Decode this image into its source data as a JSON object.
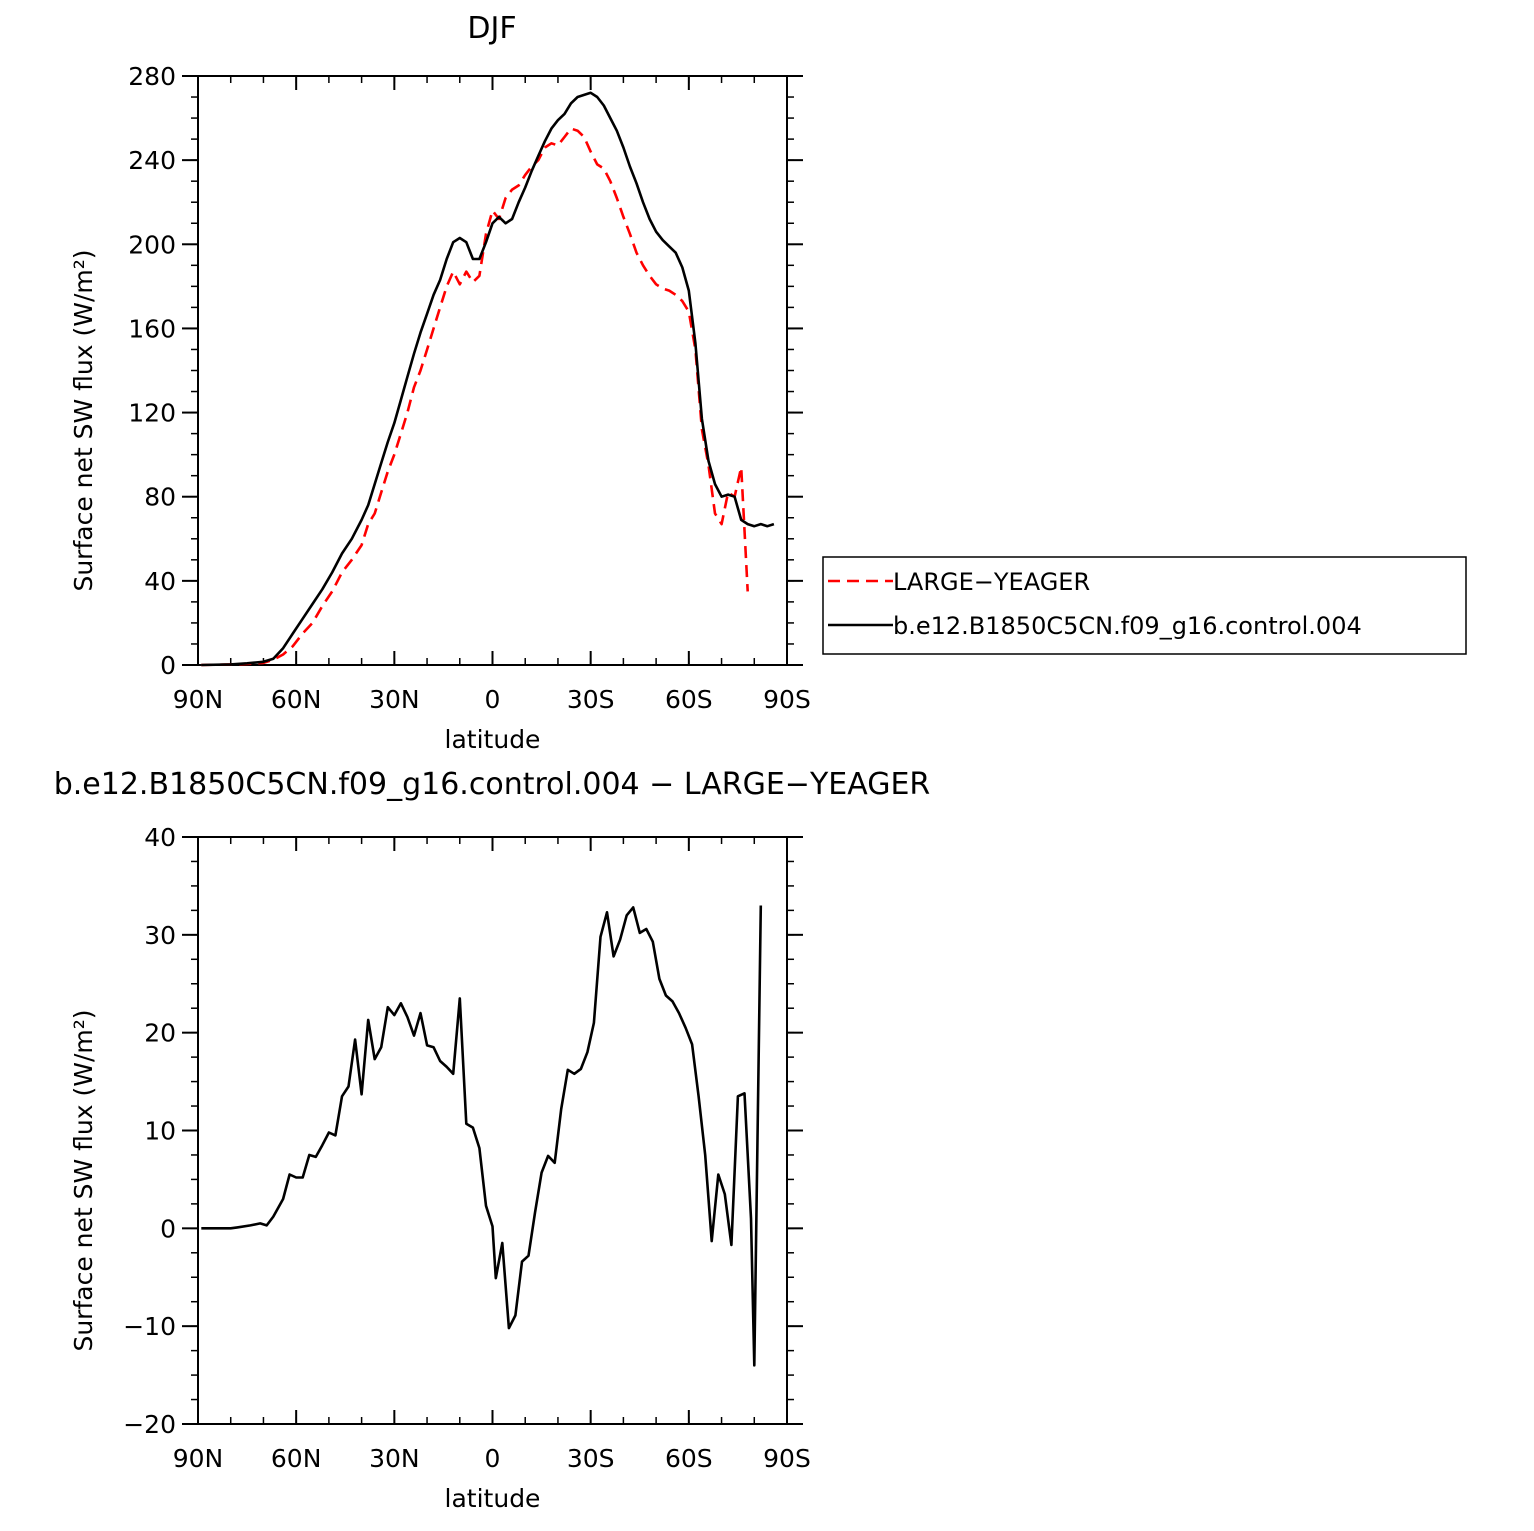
{
  "chart_data": [
    {
      "type": "line",
      "title": "DJF",
      "xlabel": "latitude",
      "ylabel": "Surface net SW flux (W/m²)",
      "xlim": [
        90,
        -90
      ],
      "ylim": [
        0,
        280
      ],
      "x_ticks": [
        90,
        60,
        30,
        0,
        -30,
        -60,
        -90
      ],
      "x_tick_labels": [
        "90N",
        "60N",
        "30N",
        "0",
        "30S",
        "60S",
        "90S"
      ],
      "y_ticks": [
        0,
        40,
        80,
        120,
        160,
        200,
        240,
        280
      ],
      "y_tick_labels": [
        "0",
        "40",
        "80",
        "120",
        "160",
        "200",
        "240",
        "280"
      ],
      "grid": false,
      "legend_position": "right",
      "series": [
        {
          "name": "LARGE−YEAGER",
          "color": "#ff0000",
          "dash": "dashed",
          "points": [
            [
              89,
              0
            ],
            [
              80,
              0.3
            ],
            [
              75,
              0.5
            ],
            [
              70,
              1
            ],
            [
              67,
              2.5
            ],
            [
              64,
              5
            ],
            [
              61,
              9
            ],
            [
              58,
              15
            ],
            [
              55,
              20
            ],
            [
              52,
              28
            ],
            [
              49,
              35
            ],
            [
              46,
              44
            ],
            [
              43,
              50
            ],
            [
              40,
              57
            ],
            [
              38,
              67
            ],
            [
              36,
              72
            ],
            [
              34,
              82
            ],
            [
              32,
              92
            ],
            [
              30,
              100
            ],
            [
              28,
              110
            ],
            [
              26,
              120
            ],
            [
              24,
              132
            ],
            [
              22,
              140
            ],
            [
              20,
              150
            ],
            [
              18,
              160
            ],
            [
              16,
              170
            ],
            [
              14,
              180
            ],
            [
              12,
              187
            ],
            [
              10,
              181
            ],
            [
              8,
              187
            ],
            [
              6,
              182
            ],
            [
              4,
              185
            ],
            [
              2,
              205
            ],
            [
              0,
              216
            ],
            [
              -2,
              212
            ],
            [
              -4,
              222
            ],
            [
              -6,
              226
            ],
            [
              -8,
              228
            ],
            [
              -10,
              233
            ],
            [
              -12,
              237
            ],
            [
              -14,
              240
            ],
            [
              -16,
              246
            ],
            [
              -18,
              248
            ],
            [
              -20,
              247
            ],
            [
              -22,
              251
            ],
            [
              -24,
              255
            ],
            [
              -26,
              254
            ],
            [
              -28,
              251
            ],
            [
              -30,
              244
            ],
            [
              -32,
              238
            ],
            [
              -34,
              236
            ],
            [
              -36,
              230
            ],
            [
              -38,
              222
            ],
            [
              -40,
              213
            ],
            [
              -42,
              205
            ],
            [
              -44,
              196
            ],
            [
              -46,
              190
            ],
            [
              -48,
              185
            ],
            [
              -50,
              181
            ],
            [
              -52,
              179
            ],
            [
              -54,
              178
            ],
            [
              -56,
              176
            ],
            [
              -58,
              173
            ],
            [
              -60,
              168
            ],
            [
              -62,
              150
            ],
            [
              -64,
              112
            ],
            [
              -66,
              95
            ],
            [
              -68,
              72
            ],
            [
              -70,
              67
            ],
            [
              -72,
              82
            ],
            [
              -74,
              80
            ],
            [
              -76,
              94
            ],
            [
              -78,
              35
            ]
          ]
        },
        {
          "name": "b.e12.B1850C5CN.f09_g16.control.004",
          "color": "#000000",
          "dash": "solid",
          "points": [
            [
              89,
              0
            ],
            [
              80,
              0.3
            ],
            [
              75,
              0.8
            ],
            [
              70,
              1.5
            ],
            [
              67,
              3
            ],
            [
              64,
              8
            ],
            [
              61,
              15
            ],
            [
              58,
              22
            ],
            [
              55,
              29
            ],
            [
              52,
              36
            ],
            [
              49,
              44
            ],
            [
              46,
              53
            ],
            [
              43,
              60
            ],
            [
              40,
              69
            ],
            [
              38,
              76
            ],
            [
              36,
              86
            ],
            [
              34,
              96
            ],
            [
              32,
              106
            ],
            [
              30,
              115
            ],
            [
              28,
              126
            ],
            [
              26,
              137
            ],
            [
              24,
              148
            ],
            [
              22,
              158
            ],
            [
              20,
              167
            ],
            [
              18,
              176
            ],
            [
              16,
              183
            ],
            [
              14,
              193
            ],
            [
              12,
              201
            ],
            [
              10,
              203
            ],
            [
              8,
              201
            ],
            [
              6,
              193
            ],
            [
              4,
              193
            ],
            [
              2,
              201
            ],
            [
              0,
              210
            ],
            [
              -2,
              213
            ],
            [
              -4,
              210
            ],
            [
              -6,
              212
            ],
            [
              -8,
              220
            ],
            [
              -10,
              227
            ],
            [
              -12,
              235
            ],
            [
              -14,
              242
            ],
            [
              -16,
              249
            ],
            [
              -18,
              255
            ],
            [
              -20,
              259
            ],
            [
              -22,
              262
            ],
            [
              -24,
              267
            ],
            [
              -26,
              270
            ],
            [
              -28,
              271
            ],
            [
              -30,
              272
            ],
            [
              -32,
              270
            ],
            [
              -34,
              266
            ],
            [
              -36,
              260
            ],
            [
              -38,
              254
            ],
            [
              -40,
              246
            ],
            [
              -42,
              237
            ],
            [
              -44,
              229
            ],
            [
              -46,
              220
            ],
            [
              -48,
              212
            ],
            [
              -50,
              206
            ],
            [
              -52,
              202
            ],
            [
              -54,
              199
            ],
            [
              -56,
              196
            ],
            [
              -58,
              189
            ],
            [
              -60,
              178
            ],
            [
              -62,
              153
            ],
            [
              -64,
              117
            ],
            [
              -66,
              97
            ],
            [
              -68,
              86
            ],
            [
              -70,
              80
            ],
            [
              -72,
              81
            ],
            [
              -74,
              80
            ],
            [
              -76,
              69
            ],
            [
              -78,
              67
            ],
            [
              -80,
              66
            ],
            [
              -82,
              67
            ],
            [
              -84,
              66
            ],
            [
              -86,
              67
            ]
          ]
        }
      ]
    },
    {
      "type": "line",
      "title": "b.e12.B1850C5CN.f09_g16.control.004 − LARGE−YEAGER",
      "xlabel": "latitude",
      "ylabel": "Surface net SW flux (W/m²)",
      "xlim": [
        90,
        -90
      ],
      "ylim": [
        -20,
        40
      ],
      "x_ticks": [
        90,
        60,
        30,
        0,
        -30,
        -60,
        -90
      ],
      "x_tick_labels": [
        "90N",
        "60N",
        "30N",
        "0",
        "30S",
        "60S",
        "90S"
      ],
      "y_ticks": [
        -20,
        -10,
        0,
        10,
        20,
        30,
        40
      ],
      "y_tick_labels": [
        "−20",
        "−10",
        "0",
        "10",
        "20",
        "30",
        "40"
      ],
      "grid": false,
      "series": [
        {
          "color": "#000000",
          "dash": "solid",
          "points": [
            [
              89,
              0
            ],
            [
              80,
              0
            ],
            [
              78,
              0.1
            ],
            [
              74,
              0.3
            ],
            [
              71,
              0.5
            ],
            [
              69,
              0.3
            ],
            [
              67,
              1.2
            ],
            [
              64,
              3
            ],
            [
              62,
              5.5
            ],
            [
              60,
              5.2
            ],
            [
              58,
              5.2
            ],
            [
              56,
              7.5
            ],
            [
              54,
              7.3
            ],
            [
              52,
              8.5
            ],
            [
              50,
              9.8
            ],
            [
              48,
              9.5
            ],
            [
              46,
              13.5
            ],
            [
              44,
              14.5
            ],
            [
              42,
              19.3
            ],
            [
              40,
              13.7
            ],
            [
              38,
              21.3
            ],
            [
              36,
              17.3
            ],
            [
              34,
              18.5
            ],
            [
              32,
              22.6
            ],
            [
              30,
              21.8
            ],
            [
              28,
              23
            ],
            [
              26,
              21.6
            ],
            [
              24,
              19.7
            ],
            [
              22,
              22
            ],
            [
              20,
              18.7
            ],
            [
              18,
              18.5
            ],
            [
              16,
              17.1
            ],
            [
              14,
              16.5
            ],
            [
              12,
              15.8
            ],
            [
              10,
              23.5
            ],
            [
              8,
              10.7
            ],
            [
              6,
              10.3
            ],
            [
              4,
              8.2
            ],
            [
              2,
              2.3
            ],
            [
              0,
              0.2
            ],
            [
              -1,
              -5.1
            ],
            [
              -3,
              -1.5
            ],
            [
              -5,
              -10.2
            ],
            [
              -7,
              -8.9
            ],
            [
              -9,
              -3.4
            ],
            [
              -11,
              -2.8
            ],
            [
              -13,
              1.6
            ],
            [
              -15,
              5.7
            ],
            [
              -17,
              7.4
            ],
            [
              -19,
              6.7
            ],
            [
              -21,
              12.2
            ],
            [
              -23,
              16.2
            ],
            [
              -25,
              15.8
            ],
            [
              -27,
              16.3
            ],
            [
              -29,
              18
            ],
            [
              -31,
              21
            ],
            [
              -33,
              29.8
            ],
            [
              -35,
              32.3
            ],
            [
              -37,
              27.8
            ],
            [
              -39,
              29.5
            ],
            [
              -41,
              32
            ],
            [
              -43,
              32.8
            ],
            [
              -45,
              30.2
            ],
            [
              -47,
              30.6
            ],
            [
              -49,
              29.3
            ],
            [
              -51,
              25.5
            ],
            [
              -53,
              23.8
            ],
            [
              -55,
              23.2
            ],
            [
              -57,
              22
            ],
            [
              -59,
              20.5
            ],
            [
              -61,
              18.8
            ],
            [
              -63,
              13.5
            ],
            [
              -65,
              7.5
            ],
            [
              -67,
              -1.3
            ],
            [
              -69,
              5.5
            ],
            [
              -71,
              3.5
            ],
            [
              -73,
              -1.7
            ],
            [
              -75,
              13.5
            ],
            [
              -77,
              13.8
            ],
            [
              -79,
              1
            ],
            [
              -80,
              -14
            ],
            [
              -82,
              33
            ]
          ]
        }
      ]
    }
  ],
  "legend": {
    "items": [
      {
        "label": "LARGE−YEAGER",
        "color": "#ff0000",
        "dash": "dashed"
      },
      {
        "label": "b.e12.B1850C5CN.f09_g16.control.004",
        "color": "#000000",
        "dash": "solid"
      }
    ]
  }
}
